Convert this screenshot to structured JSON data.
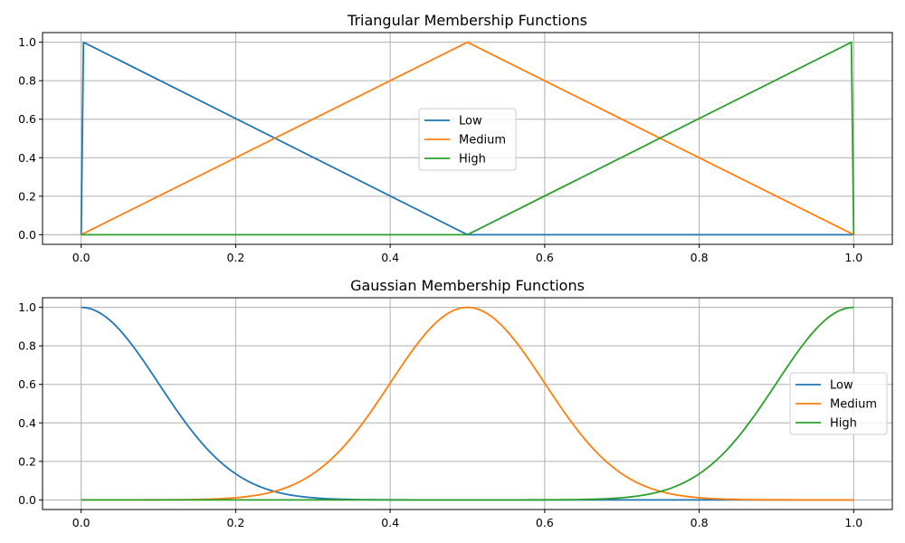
{
  "chart_data": [
    {
      "type": "line",
      "title": "Triangular Membership Functions",
      "xlim": [
        -0.05,
        1.05
      ],
      "ylim": [
        -0.05,
        1.05
      ],
      "xticks": [
        0.0,
        0.2,
        0.4,
        0.6,
        0.8,
        1.0
      ],
      "xtick_labels": [
        "0.0",
        "0.2",
        "0.4",
        "0.6",
        "0.8",
        "1.0"
      ],
      "yticks": [
        0.0,
        0.2,
        0.4,
        0.6,
        0.8,
        1.0
      ],
      "ytick_labels": [
        "0.0",
        "0.2",
        "0.4",
        "0.6",
        "0.8",
        "1.0"
      ],
      "grid": true,
      "legend": "center",
      "series": [
        {
          "name": "Low",
          "color": "#1f77b4",
          "x": [
            0.0,
            0.003,
            0.5,
            1.0
          ],
          "y": [
            0.0,
            1.0,
            0.0,
            0.0
          ]
        },
        {
          "name": "Medium",
          "color": "#ff7f0e",
          "x": [
            0.0,
            0.5,
            1.0
          ],
          "y": [
            0.0,
            1.0,
            0.0
          ]
        },
        {
          "name": "High",
          "color": "#2ca02c",
          "x": [
            0.0,
            0.5,
            0.997,
            1.0
          ],
          "y": [
            0.0,
            0.0,
            1.0,
            0.0
          ]
        }
      ]
    },
    {
      "type": "line",
      "title": "Gaussian Membership Functions",
      "xlim": [
        -0.05,
        1.05
      ],
      "ylim": [
        -0.05,
        1.05
      ],
      "xticks": [
        0.0,
        0.2,
        0.4,
        0.6,
        0.8,
        1.0
      ],
      "xtick_labels": [
        "0.0",
        "0.2",
        "0.4",
        "0.6",
        "0.8",
        "1.0"
      ],
      "yticks": [
        0.0,
        0.2,
        0.4,
        0.6,
        0.8,
        1.0
      ],
      "ytick_labels": [
        "0.0",
        "0.2",
        "0.4",
        "0.6",
        "0.8",
        "1.0"
      ],
      "grid": true,
      "legend": "center-right",
      "series": [
        {
          "name": "Low",
          "color": "#1f77b4",
          "x": [
            0.0,
            0.05,
            0.1,
            0.15,
            0.2,
            0.25,
            0.3,
            0.35,
            0.4,
            0.5,
            0.6,
            0.7,
            0.8,
            0.9,
            1.0
          ],
          "y": [
            1.0,
            0.882,
            0.607,
            0.325,
            0.135,
            0.044,
            0.011,
            0.002,
            0.0003,
            0.0,
            0.0,
            0.0,
            0.0,
            0.0,
            0.0
          ]
        },
        {
          "name": "Medium",
          "color": "#ff7f0e",
          "x": [
            0.0,
            0.1,
            0.15,
            0.2,
            0.25,
            0.3,
            0.35,
            0.4,
            0.45,
            0.5,
            0.55,
            0.6,
            0.65,
            0.7,
            0.75,
            0.8,
            0.85,
            0.9,
            1.0
          ],
          "y": [
            0.0,
            0.0003,
            0.002,
            0.011,
            0.044,
            0.135,
            0.325,
            0.607,
            0.882,
            1.0,
            0.882,
            0.607,
            0.325,
            0.135,
            0.044,
            0.011,
            0.002,
            0.0003,
            0.0
          ]
        },
        {
          "name": "High",
          "color": "#2ca02c",
          "x": [
            0.0,
            0.1,
            0.2,
            0.3,
            0.4,
            0.5,
            0.6,
            0.65,
            0.7,
            0.75,
            0.8,
            0.85,
            0.9,
            0.95,
            1.0
          ],
          "y": [
            0.0,
            0.0,
            0.0,
            0.0,
            0.0,
            0.0,
            0.0003,
            0.002,
            0.011,
            0.044,
            0.135,
            0.325,
            0.607,
            0.882,
            1.0
          ]
        }
      ]
    }
  ]
}
